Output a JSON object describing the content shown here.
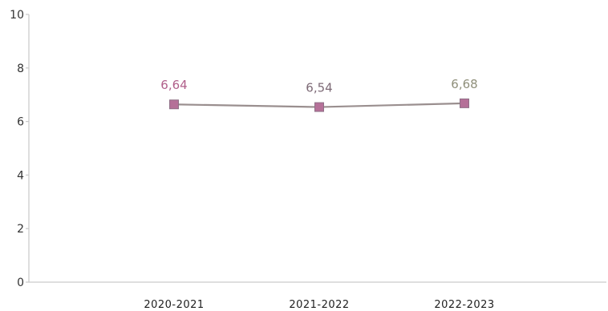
{
  "chart_data": {
    "type": "line",
    "categories": [
      "2020-2021",
      "2021-2022",
      "2022-2023"
    ],
    "series": [
      {
        "values": [
          6.64,
          6.54,
          6.68
        ],
        "data_labels": [
          "6,64",
          "6,54",
          "6,68"
        ],
        "color": "#b57098",
        "line_color": "#9a8f8f"
      }
    ],
    "ylim": [
      0,
      10
    ],
    "yticks": [
      0,
      2,
      4,
      6,
      8,
      10
    ],
    "ytick_labels": [
      "0",
      "2",
      "4",
      "6",
      "8",
      "10"
    ],
    "label_colors": [
      "#b05f8a",
      "#7d6a76",
      "#8f8f7a"
    ],
    "grid": false,
    "title": "",
    "xlabel": "",
    "ylabel": ""
  }
}
